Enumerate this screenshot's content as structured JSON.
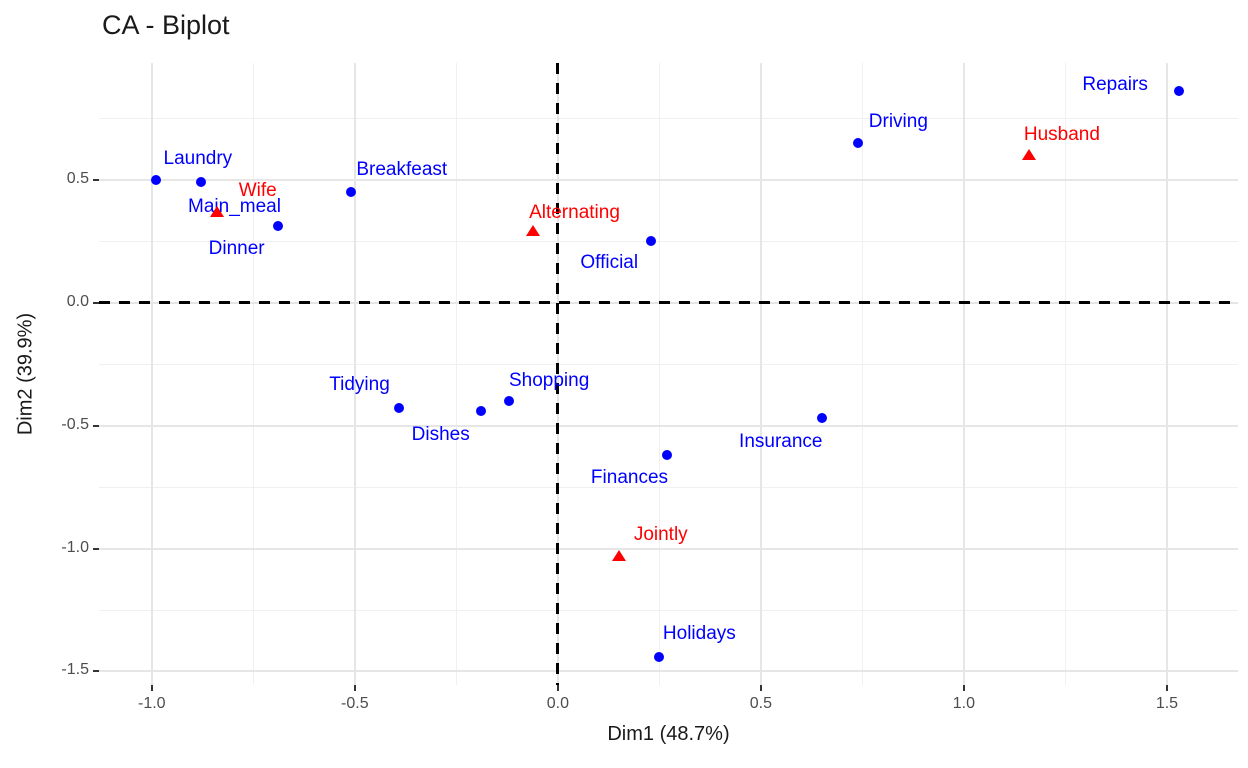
{
  "chart_data": {
    "type": "scatter",
    "title": "CA - Biplot",
    "xlabel": "Dim1 (48.7%)",
    "ylabel": "Dim2 (39.9%)",
    "xlim": [
      -1.13,
      1.675
    ],
    "ylim": [
      -1.555,
      0.975
    ],
    "grid": true,
    "legend": false,
    "x_ticks": [
      -1.0,
      -0.5,
      0.0,
      0.5,
      1.0,
      1.5
    ],
    "x_tick_labels": [
      "-1.0",
      "-0.5",
      "0.0",
      "0.5",
      "1.0",
      "1.5"
    ],
    "x_minor_ticks": [
      -0.75,
      -0.25,
      0.25,
      0.75,
      1.25
    ],
    "y_ticks": [
      0.5,
      0.0,
      -0.5,
      -1.0,
      -1.5
    ],
    "y_tick_labels": [
      "0.5",
      "0.0",
      "-0.5",
      "-1.0",
      "-1.5"
    ],
    "y_minor_ticks": [
      0.75,
      0.25,
      -0.25,
      -0.75,
      -1.25
    ],
    "reference_lines": {
      "vline_x": 0,
      "hline_y": 0,
      "style": "dashed",
      "color": "#000000"
    },
    "series": [
      {
        "name": "rows",
        "marker": "circle",
        "color": "#0000ff",
        "points": [
          {
            "label": "Laundry",
            "x": -0.99,
            "y": 0.5,
            "label_dx": 42,
            "label_dy": -21
          },
          {
            "label": "Main_meal",
            "x": -0.88,
            "y": 0.49,
            "label_dx": 34,
            "label_dy": 25
          },
          {
            "label": "Dinner",
            "x": -0.69,
            "y": 0.31,
            "label_dx": -41,
            "label_dy": 23
          },
          {
            "label": "Breakfeast",
            "x": -0.51,
            "y": 0.45,
            "label_dx": 51,
            "label_dy": -22
          },
          {
            "label": "Tidying",
            "x": -0.39,
            "y": -0.43,
            "label_dx": -40,
            "label_dy": -23
          },
          {
            "label": "Dishes",
            "x": -0.19,
            "y": -0.44,
            "label_dx": -40,
            "label_dy": 24
          },
          {
            "label": "Shopping",
            "x": -0.12,
            "y": -0.4,
            "label_dx": 40,
            "label_dy": -20
          },
          {
            "label": "Official",
            "x": 0.23,
            "y": 0.25,
            "label_dx": -42,
            "label_dy": 22
          },
          {
            "label": "Driving",
            "x": 0.74,
            "y": 0.65,
            "label_dx": 40,
            "label_dy": -21
          },
          {
            "label": "Finances",
            "x": 0.27,
            "y": -0.62,
            "label_dx": -38,
            "label_dy": 23
          },
          {
            "label": "Insurance",
            "x": 0.65,
            "y": -0.47,
            "label_dx": -41,
            "label_dy": 24
          },
          {
            "label": "Repairs",
            "x": 1.53,
            "y": 0.86,
            "label_dx": -64,
            "label_dy": -6
          },
          {
            "label": "Holidays",
            "x": 0.25,
            "y": -1.44,
            "label_dx": 40,
            "label_dy": -23
          }
        ]
      },
      {
        "name": "cols",
        "marker": "triangle",
        "color": "#ff0000",
        "points": [
          {
            "label": "Wife",
            "x": -0.84,
            "y": 0.37,
            "label_dx": 41,
            "label_dy": -21
          },
          {
            "label": "Alternating",
            "x": -0.06,
            "y": 0.29,
            "label_dx": 41,
            "label_dy": -18
          },
          {
            "label": "Husband",
            "x": 1.16,
            "y": 0.6,
            "label_dx": 33,
            "label_dy": -20
          },
          {
            "label": "Jointly",
            "x": 0.15,
            "y": -1.03,
            "label_dx": 42,
            "label_dy": -21
          }
        ]
      }
    ]
  }
}
